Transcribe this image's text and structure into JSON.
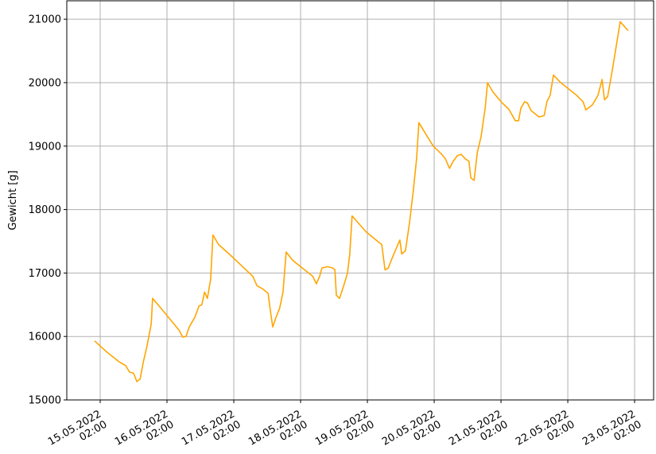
{
  "chart_data": {
    "type": "line",
    "y_label": "Gewicht [g]",
    "color": "#ffa500",
    "grid": true,
    "xlim": [
      "2022-05-14 14:00",
      "2022-05-23 08:50"
    ],
    "ylim": [
      15000,
      21290
    ],
    "yticks": [
      15000,
      16000,
      17000,
      18000,
      19000,
      20000,
      21000
    ],
    "xticks": [
      {
        "value": "2022-05-15 02:00",
        "label": "15.05.2022\n02:00"
      },
      {
        "value": "2022-05-16 02:00",
        "label": "16.05.2022\n02:00"
      },
      {
        "value": "2022-05-17 02:00",
        "label": "17.05.2022\n02:00"
      },
      {
        "value": "2022-05-18 02:00",
        "label": "18.05.2022\n02:00"
      },
      {
        "value": "2022-05-19 02:00",
        "label": "19.05.2022\n02:00"
      },
      {
        "value": "2022-05-20 02:00",
        "label": "20.05.2022\n02:00"
      },
      {
        "value": "2022-05-21 02:00",
        "label": "21.05.2022\n02:00"
      },
      {
        "value": "2022-05-22 02:00",
        "label": "22.05.2022\n02:00"
      },
      {
        "value": "2022-05-23 02:00",
        "label": "23.05.2022\n02:00"
      }
    ],
    "x": [
      "2022-05-15 00:00",
      "2022-05-15 04:30",
      "2022-05-15 08:50",
      "2022-05-15 11:10",
      "2022-05-15 12:30",
      "2022-05-15 14:00",
      "2022-05-15 15:10",
      "2022-05-15 16:20",
      "2022-05-15 17:30",
      "2022-05-15 18:50",
      "2022-05-15 20:20",
      "2022-05-15 20:50",
      "2022-05-15 23:10",
      "2022-05-16 03:30",
      "2022-05-16 06:20",
      "2022-05-16 07:40",
      "2022-05-16 08:50",
      "2022-05-16 10:00",
      "2022-05-16 12:00",
      "2022-05-16 13:30",
      "2022-05-16 14:30",
      "2022-05-16 15:30",
      "2022-05-16 16:30",
      "2022-05-16 17:40",
      "2022-05-16 18:30",
      "2022-05-16 20:30",
      "2022-05-17 00:50",
      "2022-05-17 05:10",
      "2022-05-17 08:50",
      "2022-05-17 10:20",
      "2022-05-17 12:20",
      "2022-05-17 14:20",
      "2022-05-17 15:10",
      "2022-05-17 16:00",
      "2022-05-17 17:10",
      "2022-05-17 18:30",
      "2022-05-17 19:40",
      "2022-05-17 20:50",
      "2022-05-17 23:10",
      "2022-05-18 02:00",
      "2022-05-18 06:20",
      "2022-05-18 07:40",
      "2022-05-18 08:50",
      "2022-05-18 09:40",
      "2022-05-18 11:40",
      "2022-05-18 13:30",
      "2022-05-18 14:20",
      "2022-05-18 14:50",
      "2022-05-18 16:00",
      "2022-05-18 17:30",
      "2022-05-18 18:50",
      "2022-05-18 19:40",
      "2022-05-18 20:30",
      "2022-05-18 22:30",
      "2022-05-19 01:30",
      "2022-05-19 05:40",
      "2022-05-19 07:10",
      "2022-05-19 08:20",
      "2022-05-19 09:30",
      "2022-05-19 11:30",
      "2022-05-19 13:40",
      "2022-05-19 14:20",
      "2022-05-19 15:40",
      "2022-05-19 17:10",
      "2022-05-19 18:30",
      "2022-05-19 19:40",
      "2022-05-19 20:30",
      "2022-05-19 22:50",
      "2022-05-20 01:40",
      "2022-05-20 04:30",
      "2022-05-20 06:00",
      "2022-05-20 07:30",
      "2022-05-20 08:50",
      "2022-05-20 10:20",
      "2022-05-20 11:40",
      "2022-05-20 13:10",
      "2022-05-20 14:30",
      "2022-05-20 15:10",
      "2022-05-20 16:20",
      "2022-05-20 17:30",
      "2022-05-20 18:50",
      "2022-05-20 20:20",
      "2022-05-20 21:10",
      "2022-05-20 23:10",
      "2022-05-21 02:00",
      "2022-05-21 04:50",
      "2022-05-21 07:10",
      "2022-05-21 08:20",
      "2022-05-21 09:10",
      "2022-05-21 10:30",
      "2022-05-21 11:30",
      "2022-05-21 12:50",
      "2022-05-21 15:40",
      "2022-05-21 17:30",
      "2022-05-21 18:30",
      "2022-05-21 19:40",
      "2022-05-21 20:50",
      "2022-05-21 23:30",
      "2022-05-22 02:20",
      "2022-05-22 05:10",
      "2022-05-22 07:30",
      "2022-05-22 08:30",
      "2022-05-22 10:50",
      "2022-05-22 12:50",
      "2022-05-22 14:20",
      "2022-05-22 15:10",
      "2022-05-22 16:20",
      "2022-05-22 18:00",
      "2022-05-22 19:30",
      "2022-05-22 20:50",
      "2022-05-22 23:40"
    ],
    "values": [
      15930,
      15750,
      15600,
      15540,
      15440,
      15420,
      15290,
      15330,
      15600,
      15850,
      16200,
      16600,
      16480,
      16250,
      16100,
      15990,
      16000,
      16150,
      16300,
      16480,
      16500,
      16700,
      16600,
      16900,
      17600,
      17450,
      17280,
      17100,
      16950,
      16800,
      16750,
      16680,
      16400,
      16150,
      16300,
      16450,
      16700,
      17330,
      17200,
      17100,
      16950,
      16830,
      16950,
      17080,
      17100,
      17080,
      17050,
      16650,
      16600,
      16800,
      17000,
      17300,
      17900,
      17800,
      17650,
      17500,
      17450,
      17050,
      17080,
      17300,
      17520,
      17300,
      17350,
      17800,
      18300,
      18800,
      19370,
      19200,
      19000,
      18880,
      18800,
      18650,
      18760,
      18850,
      18870,
      18800,
      18760,
      18500,
      18460,
      18900,
      19150,
      19600,
      20000,
      19850,
      19700,
      19580,
      19400,
      19400,
      19600,
      19700,
      19680,
      19560,
      19460,
      19480,
      19700,
      19800,
      20120,
      20000,
      19900,
      19800,
      19700,
      19570,
      19650,
      19800,
      20050,
      19730,
      19780,
      20200,
      20600,
      20960,
      20820
    ]
  }
}
